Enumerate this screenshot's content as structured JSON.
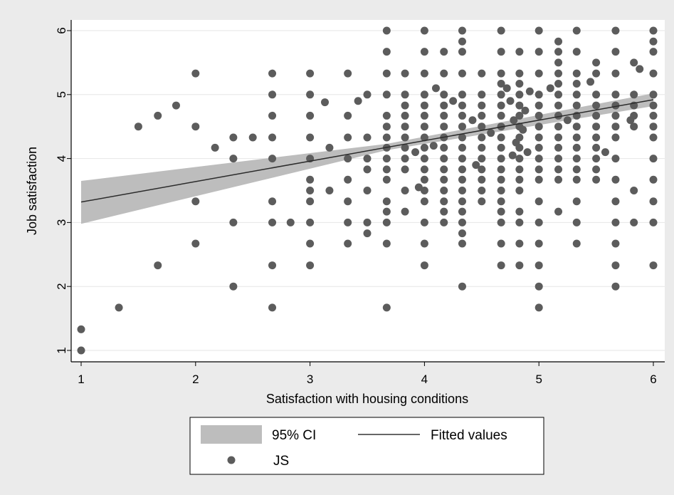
{
  "chart_data": {
    "type": "scatter",
    "xlabel": "Satisfaction with housing conditions",
    "ylabel": "Job satisfaction",
    "xlim": [
      1,
      6
    ],
    "ylim": [
      1,
      6
    ],
    "x_ticks": [
      "1",
      "2",
      "3",
      "4",
      "5",
      "6"
    ],
    "y_ticks": [
      "1",
      "2",
      "3",
      "4",
      "5",
      "6"
    ],
    "grid": "horizontal",
    "legend_position": "bottom",
    "legend": {
      "ci_label": "95% CI",
      "fit_label": "Fitted values",
      "points_label": "JS"
    },
    "fit_line": {
      "x": [
        1,
        6
      ],
      "y": [
        3.32,
        4.92
      ]
    },
    "ci_band": {
      "x": [
        1,
        3.67,
        6
      ],
      "lower": [
        2.98,
        4.13,
        4.82
      ],
      "upper": [
        3.65,
        4.23,
        5.02
      ]
    },
    "points": [
      [
        1,
        1
      ],
      [
        1,
        1.33
      ],
      [
        1.33,
        1.67
      ],
      [
        1.5,
        4.5
      ],
      [
        1.67,
        2.33
      ],
      [
        1.67,
        4.67
      ],
      [
        1.83,
        4.83
      ],
      [
        2,
        5.33
      ],
      [
        2,
        4.5
      ],
      [
        2,
        3.33
      ],
      [
        2,
        2.67
      ],
      [
        2.17,
        4.17
      ],
      [
        2.33,
        4.33
      ],
      [
        2.33,
        4
      ],
      [
        2.33,
        3
      ],
      [
        2.33,
        2
      ],
      [
        2.5,
        4.33
      ],
      [
        2.67,
        5.33
      ],
      [
        2.67,
        5
      ],
      [
        2.67,
        4.67
      ],
      [
        2.67,
        4.33
      ],
      [
        2.67,
        4
      ],
      [
        2.67,
        3.33
      ],
      [
        2.67,
        3
      ],
      [
        2.67,
        2.33
      ],
      [
        2.67,
        1.67
      ],
      [
        2.83,
        3
      ],
      [
        3,
        5.33
      ],
      [
        3,
        5
      ],
      [
        3,
        4.67
      ],
      [
        3,
        4.33
      ],
      [
        3,
        4
      ],
      [
        3,
        3.67
      ],
      [
        3,
        3.5
      ],
      [
        3,
        3.33
      ],
      [
        3,
        3
      ],
      [
        3,
        2.67
      ],
      [
        3,
        2.33
      ],
      [
        3.17,
        4.17
      ],
      [
        3.17,
        3.5
      ],
      [
        3.13,
        4.88
      ],
      [
        3.33,
        5.33
      ],
      [
        3.33,
        4.67
      ],
      [
        3.33,
        4.33
      ],
      [
        3.33,
        4
      ],
      [
        3.33,
        3.67
      ],
      [
        3.33,
        3.33
      ],
      [
        3.33,
        3
      ],
      [
        3.33,
        2.67
      ],
      [
        3.5,
        5
      ],
      [
        3.5,
        4.33
      ],
      [
        3.5,
        4
      ],
      [
        3.5,
        3.83
      ],
      [
        3.5,
        3.5
      ],
      [
        3.5,
        3
      ],
      [
        3.5,
        2.83
      ],
      [
        3.42,
        4.9
      ],
      [
        3.67,
        6
      ],
      [
        3.67,
        5.67
      ],
      [
        3.67,
        5.33
      ],
      [
        3.67,
        5
      ],
      [
        3.67,
        4.67
      ],
      [
        3.67,
        4.5
      ],
      [
        3.67,
        4.33
      ],
      [
        3.67,
        4.17
      ],
      [
        3.67,
        4
      ],
      [
        3.67,
        3.83
      ],
      [
        3.67,
        3.67
      ],
      [
        3.67,
        3.33
      ],
      [
        3.67,
        3.17
      ],
      [
        3.67,
        3
      ],
      [
        3.67,
        2.67
      ],
      [
        3.67,
        1.67
      ],
      [
        3.83,
        5.33
      ],
      [
        3.83,
        5
      ],
      [
        3.83,
        4.83
      ],
      [
        3.83,
        4.67
      ],
      [
        3.83,
        4.5
      ],
      [
        3.83,
        4.33
      ],
      [
        3.83,
        4.17
      ],
      [
        3.83,
        4
      ],
      [
        3.83,
        3.83
      ],
      [
        3.83,
        3.5
      ],
      [
        3.83,
        3.17
      ],
      [
        4,
        6
      ],
      [
        4,
        5.67
      ],
      [
        4,
        5.33
      ],
      [
        4,
        5
      ],
      [
        4,
        4.83
      ],
      [
        4,
        4.67
      ],
      [
        4,
        4.5
      ],
      [
        4,
        4.33
      ],
      [
        4,
        4.17
      ],
      [
        4,
        4
      ],
      [
        4,
        3.83
      ],
      [
        4,
        3.67
      ],
      [
        4,
        3.5
      ],
      [
        4,
        3.33
      ],
      [
        4,
        3
      ],
      [
        4,
        2.67
      ],
      [
        4,
        2.33
      ],
      [
        3.92,
        4.1
      ],
      [
        3.95,
        3.55
      ],
      [
        4.17,
        5.67
      ],
      [
        4.17,
        5.33
      ],
      [
        4.17,
        5
      ],
      [
        4.17,
        4.83
      ],
      [
        4.17,
        4.67
      ],
      [
        4.17,
        4.5
      ],
      [
        4.17,
        4.33
      ],
      [
        4.17,
        4.17
      ],
      [
        4.17,
        4
      ],
      [
        4.17,
        3.83
      ],
      [
        4.17,
        3.67
      ],
      [
        4.17,
        3.5
      ],
      [
        4.17,
        3.33
      ],
      [
        4.17,
        3.17
      ],
      [
        4.17,
        3
      ],
      [
        4.1,
        5.1
      ],
      [
        4.25,
        4.9
      ],
      [
        4.08,
        4.2
      ],
      [
        4.33,
        6
      ],
      [
        4.33,
        5.83
      ],
      [
        4.33,
        5.67
      ],
      [
        4.33,
        5.33
      ],
      [
        4.33,
        5
      ],
      [
        4.33,
        4.83
      ],
      [
        4.33,
        4.67
      ],
      [
        4.33,
        4.5
      ],
      [
        4.33,
        4.33
      ],
      [
        4.33,
        4.17
      ],
      [
        4.33,
        4
      ],
      [
        4.33,
        3.83
      ],
      [
        4.33,
        3.67
      ],
      [
        4.33,
        3.5
      ],
      [
        4.33,
        3.33
      ],
      [
        4.33,
        3.17
      ],
      [
        4.33,
        3
      ],
      [
        4.33,
        2.83
      ],
      [
        4.33,
        2.67
      ],
      [
        4.33,
        2
      ],
      [
        4.5,
        5.33
      ],
      [
        4.5,
        5
      ],
      [
        4.5,
        4.83
      ],
      [
        4.5,
        4.67
      ],
      [
        4.5,
        4.5
      ],
      [
        4.5,
        4.33
      ],
      [
        4.5,
        4.17
      ],
      [
        4.5,
        4
      ],
      [
        4.5,
        3.83
      ],
      [
        4.5,
        3.67
      ],
      [
        4.5,
        3.5
      ],
      [
        4.5,
        3.33
      ],
      [
        4.42,
        4.6
      ],
      [
        4.58,
        4.4
      ],
      [
        4.45,
        3.9
      ],
      [
        4.67,
        6
      ],
      [
        4.67,
        5.67
      ],
      [
        4.67,
        5.33
      ],
      [
        4.67,
        5.17
      ],
      [
        4.67,
        5
      ],
      [
        4.67,
        4.83
      ],
      [
        4.67,
        4.67
      ],
      [
        4.67,
        4.5
      ],
      [
        4.67,
        4.33
      ],
      [
        4.67,
        4.17
      ],
      [
        4.67,
        4
      ],
      [
        4.67,
        3.83
      ],
      [
        4.67,
        3.67
      ],
      [
        4.67,
        3.5
      ],
      [
        4.67,
        3.33
      ],
      [
        4.67,
        3.17
      ],
      [
        4.67,
        3
      ],
      [
        4.67,
        2.67
      ],
      [
        4.67,
        2.33
      ],
      [
        4.83,
        5.67
      ],
      [
        4.83,
        5.33
      ],
      [
        4.83,
        5.17
      ],
      [
        4.83,
        5
      ],
      [
        4.83,
        4.83
      ],
      [
        4.83,
        4.67
      ],
      [
        4.83,
        4.5
      ],
      [
        4.83,
        4.33
      ],
      [
        4.83,
        4.17
      ],
      [
        4.83,
        4
      ],
      [
        4.83,
        3.83
      ],
      [
        4.83,
        3.67
      ],
      [
        4.83,
        3.5
      ],
      [
        4.83,
        3.17
      ],
      [
        4.83,
        3
      ],
      [
        4.83,
        2.67
      ],
      [
        4.83,
        2.33
      ],
      [
        4.75,
        4.9
      ],
      [
        4.78,
        4.6
      ],
      [
        4.8,
        4.25
      ],
      [
        4.86,
        4.45
      ],
      [
        4.88,
        4.75
      ],
      [
        4.9,
        4.1
      ],
      [
        4.72,
        5.1
      ],
      [
        4.77,
        4.05
      ],
      [
        4.92,
        5.05
      ],
      [
        5,
        6
      ],
      [
        5,
        5.67
      ],
      [
        5,
        5.33
      ],
      [
        5,
        5
      ],
      [
        5,
        4.83
      ],
      [
        5,
        4.67
      ],
      [
        5,
        4.5
      ],
      [
        5,
        4.33
      ],
      [
        5,
        4.17
      ],
      [
        5,
        4
      ],
      [
        5,
        3.83
      ],
      [
        5,
        3.67
      ],
      [
        5,
        3.33
      ],
      [
        5,
        3
      ],
      [
        5,
        2.67
      ],
      [
        5,
        2.33
      ],
      [
        5,
        2
      ],
      [
        5,
        1.67
      ],
      [
        5.17,
        5.83
      ],
      [
        5.17,
        5.67
      ],
      [
        5.17,
        5.5
      ],
      [
        5.17,
        5.33
      ],
      [
        5.17,
        5.17
      ],
      [
        5.17,
        5
      ],
      [
        5.17,
        4.83
      ],
      [
        5.17,
        4.67
      ],
      [
        5.17,
        4.5
      ],
      [
        5.17,
        4.33
      ],
      [
        5.17,
        4.17
      ],
      [
        5.17,
        4
      ],
      [
        5.17,
        3.83
      ],
      [
        5.17,
        3.67
      ],
      [
        5.17,
        3.17
      ],
      [
        5.1,
        5.1
      ],
      [
        5.25,
        4.6
      ],
      [
        5.33,
        6
      ],
      [
        5.33,
        5.67
      ],
      [
        5.33,
        5.33
      ],
      [
        5.33,
        5.17
      ],
      [
        5.33,
        5
      ],
      [
        5.33,
        4.83
      ],
      [
        5.33,
        4.67
      ],
      [
        5.33,
        4.5
      ],
      [
        5.33,
        4.33
      ],
      [
        5.33,
        4.17
      ],
      [
        5.33,
        4
      ],
      [
        5.33,
        3.83
      ],
      [
        5.33,
        3.67
      ],
      [
        5.33,
        3.33
      ],
      [
        5.33,
        3
      ],
      [
        5.33,
        2.67
      ],
      [
        5.5,
        5.5
      ],
      [
        5.5,
        5.33
      ],
      [
        5.5,
        5
      ],
      [
        5.5,
        4.83
      ],
      [
        5.5,
        4.67
      ],
      [
        5.5,
        4.5
      ],
      [
        5.5,
        4.33
      ],
      [
        5.5,
        4.17
      ],
      [
        5.5,
        4
      ],
      [
        5.5,
        3.83
      ],
      [
        5.5,
        3.67
      ],
      [
        5.45,
        5.2
      ],
      [
        5.58,
        4.1
      ],
      [
        5.67,
        6
      ],
      [
        5.67,
        5.67
      ],
      [
        5.67,
        5.33
      ],
      [
        5.67,
        5
      ],
      [
        5.67,
        4.83
      ],
      [
        5.67,
        4.67
      ],
      [
        5.67,
        4.5
      ],
      [
        5.67,
        4.33
      ],
      [
        5.67,
        4
      ],
      [
        5.67,
        3.67
      ],
      [
        5.67,
        3.33
      ],
      [
        5.67,
        3
      ],
      [
        5.67,
        2.67
      ],
      [
        5.67,
        2.33
      ],
      [
        5.67,
        2
      ],
      [
        5.83,
        5.5
      ],
      [
        5.83,
        5
      ],
      [
        5.83,
        4.83
      ],
      [
        5.83,
        4.67
      ],
      [
        5.83,
        4.5
      ],
      [
        5.83,
        3.5
      ],
      [
        5.83,
        3
      ],
      [
        5.8,
        4.6
      ],
      [
        5.88,
        5.4
      ],
      [
        6,
        6
      ],
      [
        6,
        5.83
      ],
      [
        6,
        5.67
      ],
      [
        6,
        5.33
      ],
      [
        6,
        5
      ],
      [
        6,
        4.83
      ],
      [
        6,
        4.67
      ],
      [
        6,
        4.5
      ],
      [
        6,
        4.33
      ],
      [
        6,
        4
      ],
      [
        6,
        3.67
      ],
      [
        6,
        3.33
      ],
      [
        6,
        3
      ],
      [
        6,
        2.33
      ]
    ]
  }
}
